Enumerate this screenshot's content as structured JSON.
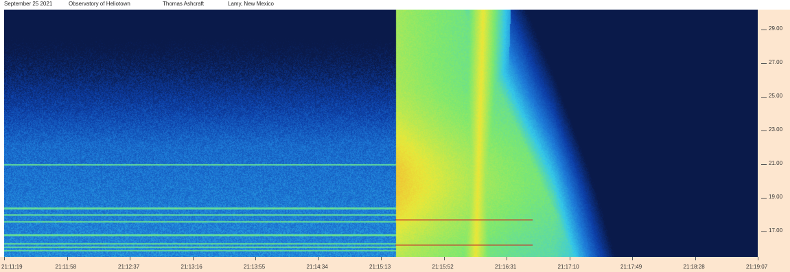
{
  "header": {
    "date": "September 25 2021",
    "observatory": "Observatory of Heliotown",
    "observer": "Thomas Ashcraft",
    "location": "Lamy, New Mexico"
  },
  "chart_data": {
    "type": "heatmap",
    "title": "",
    "xlabel": "",
    "ylabel": "",
    "x_tick_labels": [
      "21:11:19",
      "21:11:58",
      "21:12:37",
      "21:13:16",
      "21:13:55",
      "21:14:34",
      "21:15:13",
      "21:15:52",
      "21:16:31",
      "21:17:10",
      "21:17:49",
      "21:18:28",
      "21:19:07"
    ],
    "y_tick_labels": [
      "29.00",
      "27.00",
      "25.00",
      "23.00",
      "21.00",
      "19.00",
      "17.00"
    ],
    "y_tick_values": [
      29,
      27,
      25,
      23,
      21,
      19,
      17
    ],
    "ylim": [
      15.5,
      30.2
    ],
    "colormap": [
      "#0a1a4a",
      "#0d3fa8",
      "#1e7bd8",
      "#35c8e8",
      "#7de870",
      "#e8e83a",
      "#f5a030",
      "#f07850"
    ],
    "events": [
      {
        "label": "",
        "start": "21:15:22",
        "end": "21:15:27",
        "peak_intensity": 0.95,
        "peak_freq": 20.0
      },
      {
        "label": "",
        "start": "21:16:16",
        "end": "21:16:22",
        "peak_intensity": 0.72,
        "peak_freq": 19.0
      }
    ],
    "interference_lines_freq": [
      21.0,
      18.4,
      18.0,
      17.6,
      16.8,
      16.3,
      16.1,
      15.9
    ],
    "burst_line_freq": [
      17.7,
      16.2
    ]
  }
}
